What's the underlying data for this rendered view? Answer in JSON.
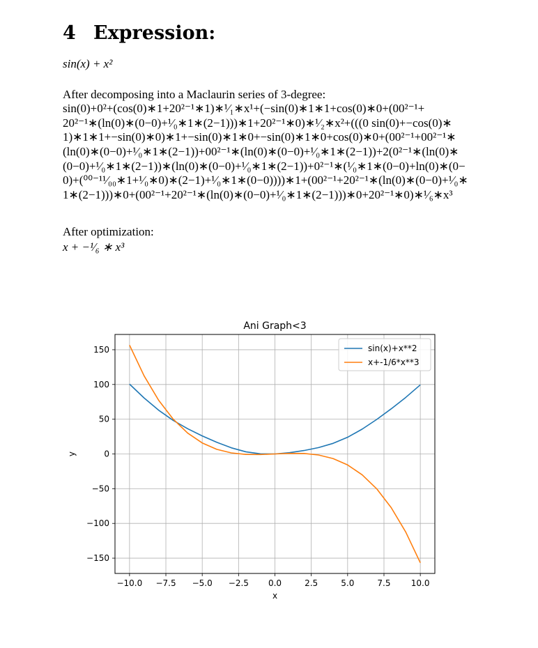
{
  "section": {
    "number": "4",
    "title": "Expression:"
  },
  "expression": "sin(x) + x²",
  "series": {
    "heading": "After decomposing into a Maclaurin series of 3-degree:",
    "lines": [
      "sin(0)+0²+(cos(0)∗1+20²⁻¹∗1)∗¹⁄₁∗x¹+(−sin(0)∗1∗1+cos(0)∗0+(00²⁻¹+",
      "20²⁻¹∗(ln(0)∗(0−0)+¹⁄₀∗1∗(2−1)))∗1+20²⁻¹∗0)∗¹⁄₂∗x²+(((0 sin(0)+−cos(0)∗",
      "1)∗1∗1+−sin(0)∗0)∗1+−sin(0)∗1∗0+−sin(0)∗1∗0+cos(0)∗0+(00²⁻¹+00²⁻¹∗",
      "(ln(0)∗(0−0)+¹⁄₀∗1∗(2−1))+00²⁻¹∗(ln(0)∗(0−0)+¹⁄₀∗1∗(2−1))+2(0²⁻¹∗(ln(0)∗",
      "(0−0)+¹⁄₀∗1∗(2−1))∗(ln(0)∗(0−0)+¹⁄₀∗1∗(2−1))+0²⁻¹∗(¹⁄₀∗1∗(0−0)+ln(0)∗(0−",
      "0)+(⁰⁰⁻¹¹⁄₀₀∗1+¹⁄₀∗0)∗(2−1)+¹⁄₀∗1∗(0−0))))∗1+(00²⁻¹+20²⁻¹∗(ln(0)∗(0−0)+¹⁄₀∗",
      "1∗(2−1)))∗0+(00²⁻¹+20²⁻¹∗(ln(0)∗(0−0)+¹⁄₀∗1∗(2−1)))∗0+20²⁻¹∗0)∗¹⁄₆∗x³"
    ]
  },
  "optimized": {
    "heading": "After optimization:",
    "expression": "x + −¹⁄₆ ∗ x³"
  },
  "chart_data": {
    "type": "line",
    "title": "Ani Graph<3",
    "xlabel": "x",
    "ylabel": "y",
    "xlim": [
      -11,
      11
    ],
    "ylim": [
      -172,
      172
    ],
    "xticks": [
      -10,
      -7.5,
      -5,
      -2.5,
      0,
      2.5,
      5,
      7.5,
      10
    ],
    "xtick_labels": [
      "−10.0",
      "−7.5",
      "−5.0",
      "−2.5",
      "0.0",
      "2.5",
      "5.0",
      "7.5",
      "10.0"
    ],
    "yticks": [
      -150,
      -100,
      -50,
      0,
      50,
      100,
      150
    ],
    "ytick_labels": [
      "−150",
      "−100",
      "−50",
      "0",
      "50",
      "100",
      "150"
    ],
    "grid": true,
    "legend_position": "top-right",
    "x": [
      -10,
      -9,
      -8,
      -7,
      -6,
      -5,
      -4,
      -3,
      -2,
      -1,
      0,
      1,
      2,
      3,
      4,
      5,
      6,
      7,
      8,
      9,
      10
    ],
    "series": [
      {
        "name": "sin(x)+x**2",
        "color": "#1f77b4",
        "values": [
          100.54,
          80.59,
          63.01,
          48.34,
          36.28,
          25.96,
          16.76,
          8.86,
          3.09,
          0.16,
          0,
          1.84,
          4.91,
          9.14,
          15.24,
          24.04,
          35.72,
          49.66,
          64.99,
          81.41,
          99.46
        ]
      },
      {
        "name": "x+-1/6*x**3",
        "color": "#ff7f0e",
        "values": [
          156.67,
          112.5,
          77.33,
          50.17,
          30,
          15.83,
          6.67,
          1.5,
          -0.67,
          -0.83,
          0,
          0.83,
          0.67,
          -1.5,
          -6.67,
          -15.83,
          -30,
          -50.17,
          -77.33,
          -112.5,
          -156.67
        ]
      }
    ]
  }
}
